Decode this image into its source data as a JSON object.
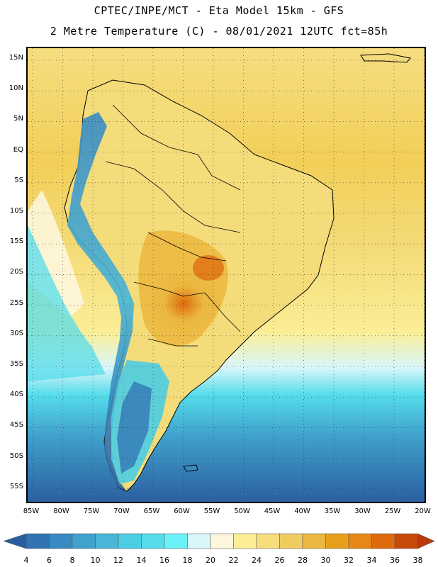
{
  "title": {
    "line1": "CPTEC/INPE/MCT -  Eta Model 15km - GFS",
    "line2": "2 Metre Temperature (C) - 08/01/2021 12UTC fct=85h"
  },
  "map": {
    "lat_labels": [
      "15N",
      "10N",
      "5N",
      "EQ",
      "5S",
      "10S",
      "15S",
      "20S",
      "25S",
      "30S",
      "35S",
      "40S",
      "45S",
      "50S",
      "55S"
    ],
    "lon_labels": [
      "85W",
      "80W",
      "75W",
      "70W",
      "65W",
      "60W",
      "55W",
      "50W",
      "45W",
      "40W",
      "35W",
      "30W",
      "25W",
      "20W"
    ],
    "ocean_color": "#f1c94a",
    "land_color": "#f4dc7a",
    "border_color": "#000000",
    "gridline_style": "dotted"
  },
  "colorbar": {
    "labels": [
      "4",
      "6",
      "8",
      "10",
      "12",
      "14",
      "16",
      "18",
      "20",
      "22",
      "24",
      "26",
      "28",
      "30",
      "32",
      "34",
      "36",
      "38"
    ],
    "colors": [
      "#2a5d9f",
      "#3173b3",
      "#3a8ac2",
      "#40a1cc",
      "#47b6d8",
      "#4ccde3",
      "#55dceb",
      "#6af1f5",
      "#d9f6fb",
      "#fdf6dc",
      "#fbee96",
      "#f6dc7a",
      "#f0cc5e",
      "#ebb73e",
      "#e8a01c",
      "#e78816",
      "#de6a0c",
      "#c84a08",
      "#b8390a"
    ]
  }
}
